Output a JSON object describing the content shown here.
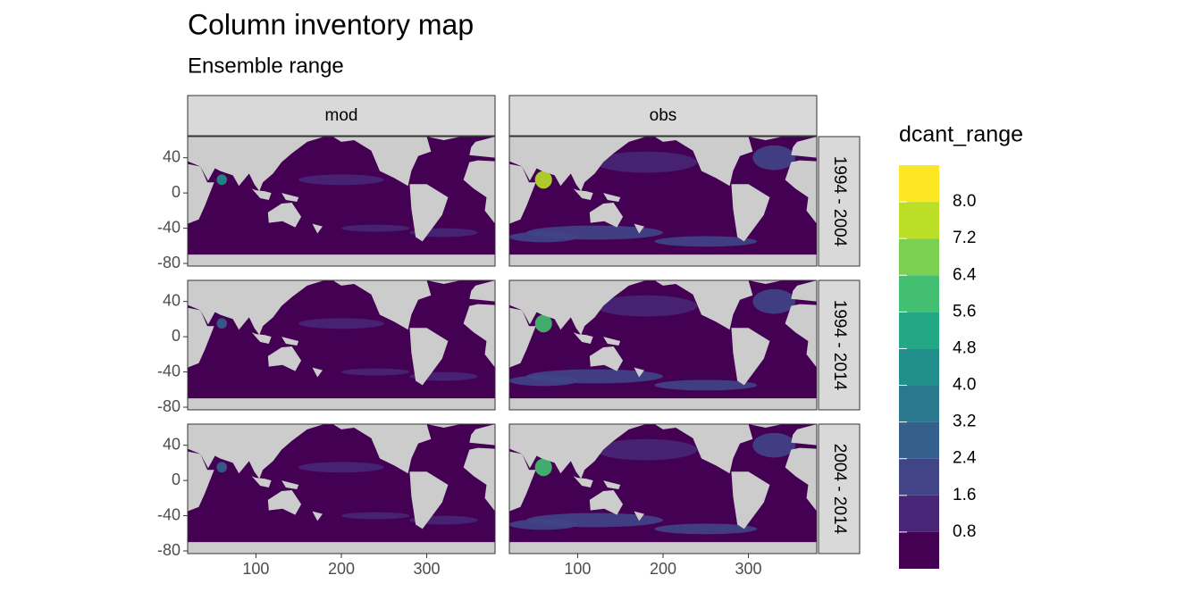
{
  "chart_data": {
    "type": "map",
    "title": "Column inventory map",
    "subtitle": "Ensemble range",
    "facet_columns": [
      "mod",
      "obs"
    ],
    "facet_rows": [
      "1994 - 2004",
      "1994 - 2014",
      "2004 - 2014"
    ],
    "xlim": [
      20,
      380
    ],
    "xticks": [
      100,
      200,
      300
    ],
    "ylim": [
      -83,
      64
    ],
    "yticks": [
      -80,
      -40,
      0,
      40
    ],
    "legend": {
      "title": "dcant_range",
      "lim": [
        0,
        8.8
      ],
      "breaks": [
        0.8,
        1.6,
        2.4,
        3.2,
        {
          "value": 4,
          "label": "4.0"
        },
        4.8,
        5.6,
        6.4,
        7.2,
        {
          "value": 8,
          "label": "8.0"
        }
      ],
      "colors": [
        "#440154",
        "#482576",
        "#414487",
        "#35608d",
        "#2a788e",
        "#21908c",
        "#22a884",
        "#43bf71",
        "#7ad151",
        "#bbdf27",
        "#fde725"
      ]
    },
    "ocean_color": "#440154",
    "land_color": "#cccccc"
  }
}
